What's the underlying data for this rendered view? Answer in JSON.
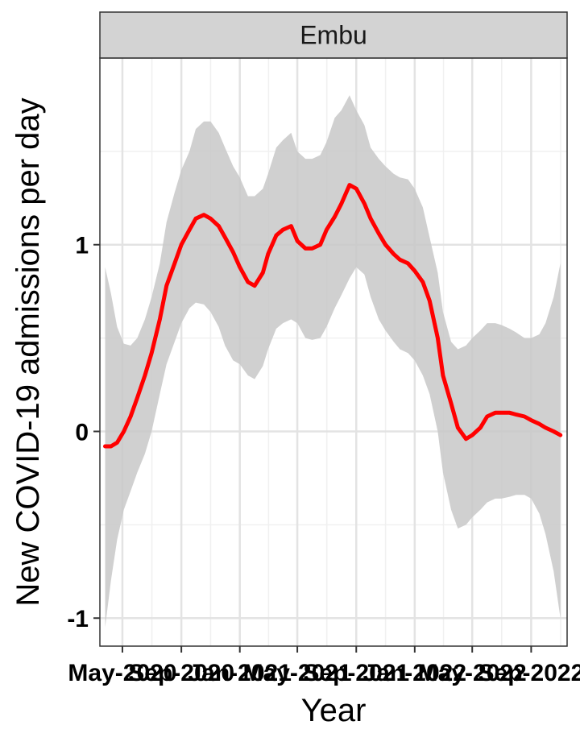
{
  "chart_data": {
    "type": "line",
    "facet_label": "Embu",
    "xlabel": "Year",
    "ylabel": "New COVID-19 admissions per day",
    "x_ticks": [
      "May-2020",
      "Sep-2020",
      "Jan-2021",
      "May-2021",
      "Sep-2021",
      "Jan-2022",
      "May-2022",
      "Sep-2022"
    ],
    "y_ticks": [
      -1,
      0,
      1
    ],
    "xlim": [
      "2020-03-15",
      "2022-11-15"
    ],
    "ylim": [
      -1.15,
      2.0
    ],
    "grid": true,
    "colors": {
      "line": "#ff0000",
      "ribbon": "#c8c8c8",
      "strip": "#d3d3d3"
    },
    "series": [
      {
        "x": [
          "2020-03-26",
          "2020-04-07",
          "2020-04-20",
          "2020-05-04",
          "2020-05-18",
          "2020-06-01",
          "2020-06-17",
          "2020-07-01",
          "2020-07-18",
          "2020-08-01",
          "2020-08-18",
          "2020-09-01",
          "2020-09-18",
          "2020-10-01",
          "2020-10-18",
          "2020-11-01",
          "2020-11-18",
          "2020-12-01",
          "2020-12-18",
          "2021-01-01",
          "2021-01-18",
          "2021-02-01",
          "2021-02-18",
          "2021-03-01",
          "2021-03-18",
          "2021-04-01",
          "2021-04-18",
          "2021-05-01",
          "2021-05-18",
          "2021-06-01",
          "2021-06-18",
          "2021-07-01",
          "2021-07-18",
          "2021-08-01",
          "2021-08-18",
          "2021-09-01",
          "2021-09-18",
          "2021-10-01",
          "2021-10-18",
          "2021-11-01",
          "2021-11-18",
          "2021-12-01",
          "2021-12-18",
          "2022-01-01",
          "2022-01-18",
          "2022-02-01",
          "2022-02-18",
          "2022-03-01",
          "2022-03-18",
          "2022-04-01",
          "2022-04-18",
          "2022-05-01",
          "2022-05-18",
          "2022-06-01",
          "2022-06-18",
          "2022-07-01",
          "2022-07-18",
          "2022-08-01",
          "2022-08-18",
          "2022-09-01",
          "2022-09-18",
          "2022-10-01",
          "2022-10-18",
          "2022-11-01"
        ],
        "y": [
          -0.08,
          -0.08,
          -0.06,
          0.0,
          0.08,
          0.18,
          0.3,
          0.42,
          0.6,
          0.78,
          0.9,
          1.0,
          1.08,
          1.14,
          1.16,
          1.14,
          1.1,
          1.04,
          0.96,
          0.88,
          0.8,
          0.78,
          0.85,
          0.95,
          1.05,
          1.08,
          1.1,
          1.02,
          0.98,
          0.98,
          1.0,
          1.08,
          1.15,
          1.22,
          1.32,
          1.3,
          1.22,
          1.14,
          1.06,
          1.0,
          0.95,
          0.92,
          0.9,
          0.86,
          0.8,
          0.7,
          0.5,
          0.3,
          0.15,
          0.02,
          -0.04,
          -0.02,
          0.02,
          0.08,
          0.1,
          0.1,
          0.1,
          0.09,
          0.08,
          0.06,
          0.04,
          0.02,
          0.0,
          -0.02
        ],
        "lower": [
          -1.05,
          -0.8,
          -0.58,
          -0.42,
          -0.32,
          -0.22,
          -0.12,
          0.0,
          0.2,
          0.36,
          0.48,
          0.58,
          0.66,
          0.69,
          0.68,
          0.64,
          0.56,
          0.46,
          0.38,
          0.36,
          0.3,
          0.28,
          0.35,
          0.44,
          0.55,
          0.58,
          0.6,
          0.58,
          0.5,
          0.49,
          0.5,
          0.56,
          0.66,
          0.73,
          0.82,
          0.88,
          0.84,
          0.72,
          0.6,
          0.54,
          0.48,
          0.44,
          0.42,
          0.38,
          0.3,
          0.2,
          0.0,
          -0.22,
          -0.42,
          -0.52,
          -0.5,
          -0.46,
          -0.42,
          -0.38,
          -0.36,
          -0.36,
          -0.35,
          -0.34,
          -0.34,
          -0.36,
          -0.44,
          -0.55,
          -0.75,
          -1.0
        ],
        "upper": [
          0.88,
          0.74,
          0.56,
          0.47,
          0.46,
          0.5,
          0.6,
          0.72,
          0.9,
          1.12,
          1.28,
          1.4,
          1.5,
          1.62,
          1.66,
          1.66,
          1.6,
          1.52,
          1.42,
          1.36,
          1.26,
          1.26,
          1.3,
          1.38,
          1.52,
          1.56,
          1.6,
          1.5,
          1.46,
          1.46,
          1.48,
          1.55,
          1.68,
          1.72,
          1.8,
          1.72,
          1.64,
          1.52,
          1.46,
          1.42,
          1.38,
          1.36,
          1.35,
          1.3,
          1.2,
          1.04,
          0.85,
          0.64,
          0.48,
          0.44,
          0.46,
          0.5,
          0.54,
          0.58,
          0.58,
          0.57,
          0.55,
          0.53,
          0.5,
          0.5,
          0.52,
          0.58,
          0.72,
          0.9
        ]
      }
    ]
  }
}
